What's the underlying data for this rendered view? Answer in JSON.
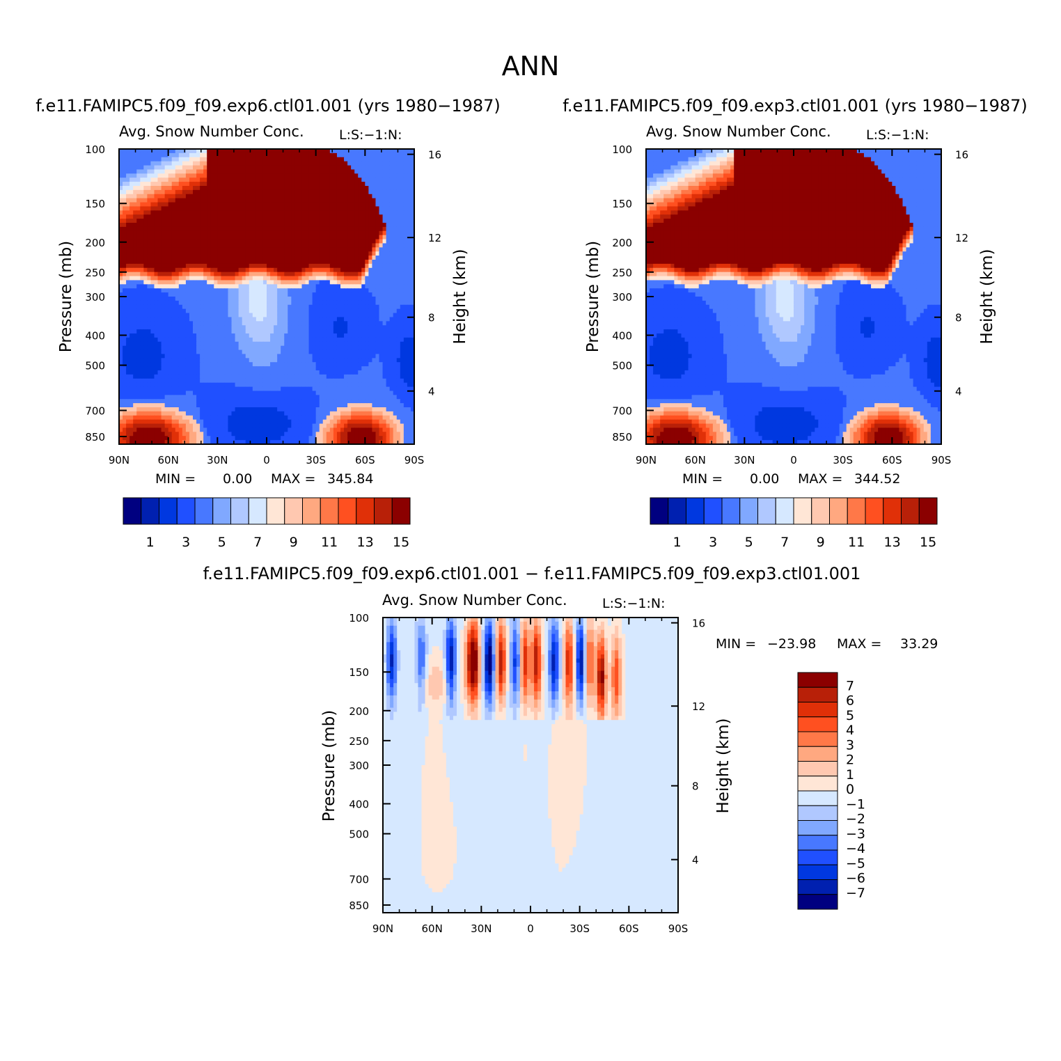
{
  "page_title": "ANN",
  "tick_lat": [
    "90N",
    "60N",
    "30N",
    "0",
    "30S",
    "60S",
    "90S"
  ],
  "tick_pressure": [
    "100",
    "150",
    "200",
    "250",
    "300",
    "400",
    "500",
    "700",
    "850"
  ],
  "tick_height": [
    "16",
    "12",
    "8",
    "4"
  ],
  "colors": {
    "seq": [
      "#000080",
      "#0020b0",
      "#0038e0",
      "#2050ff",
      "#4878ff",
      "#80a8ff",
      "#b0c8ff",
      "#d6e8ff",
      "#ffe6d6",
      "#ffc8b0",
      "#ffa880",
      "#ff7848",
      "#ff5020",
      "#e03008",
      "#b82008",
      "#8b0000"
    ],
    "diff": [
      "#000080",
      "#0020b0",
      "#0038e0",
      "#2050ff",
      "#4878ff",
      "#80a8ff",
      "#b0c8ff",
      "#d6e8ff",
      "#ffe6d6",
      "#ffc8b0",
      "#ffa880",
      "#ff7848",
      "#ff5020",
      "#e03008",
      "#b82008",
      "#8b0000"
    ]
  },
  "chart_data": [
    {
      "type": "heatmap",
      "title": "f.e11.FAMIPC5.f09_f09.exp6.ctl01.001 (yrs 1980−1987)",
      "subtitle": "Avg. Snow Number Conc.",
      "units_label": "L:S:−1:N:",
      "xlabel": "",
      "ylabel": "Pressure (mb)",
      "ylabel_right": "Height (km)",
      "x_range": [
        90,
        -90
      ],
      "y_range": [
        100,
        1000
      ],
      "y_scale": "log",
      "min_label": "MIN =",
      "min_value": "0.00",
      "max_label": "MAX =",
      "max_value": "345.84",
      "legend_ticks": [
        "1",
        "3",
        "5",
        "7",
        "9",
        "11",
        "13",
        "15"
      ],
      "legend_placement": "bottom"
    },
    {
      "type": "heatmap",
      "title": "f.e11.FAMIPC5.f09_f09.exp3.ctl01.001 (yrs 1980−1987)",
      "subtitle": "Avg. Snow Number Conc.",
      "units_label": "L:S:−1:N:",
      "xlabel": "",
      "ylabel": "Pressure (mb)",
      "ylabel_right": "Height (km)",
      "x_range": [
        90,
        -90
      ],
      "y_range": [
        100,
        1000
      ],
      "y_scale": "log",
      "min_label": "MIN =",
      "min_value": "0.00",
      "max_label": "MAX =",
      "max_value": "344.52",
      "legend_ticks": [
        "1",
        "3",
        "5",
        "7",
        "9",
        "11",
        "13",
        "15"
      ],
      "legend_placement": "bottom"
    },
    {
      "type": "heatmap",
      "title": "f.e11.FAMIPC5.f09_f09.exp6.ctl01.001 − f.e11.FAMIPC5.f09_f09.exp3.ctl01.001",
      "subtitle": "Avg. Snow Number Conc.",
      "units_label": "L:S:−1:N:",
      "xlabel": "",
      "ylabel": "Pressure (mb)",
      "ylabel_right": "Height (km)",
      "x_range": [
        90,
        -90
      ],
      "y_range": [
        100,
        1000
      ],
      "y_scale": "log",
      "min_label": "MIN =",
      "min_value": "−23.98",
      "max_label": "MAX =",
      "max_value": "33.29",
      "legend_ticks": [
        "7",
        "6",
        "5",
        "4",
        "3",
        "2",
        "1",
        "0",
        "−1",
        "−2",
        "−3",
        "−4",
        "−5",
        "−6",
        "−7"
      ],
      "legend_placement": "right"
    }
  ]
}
